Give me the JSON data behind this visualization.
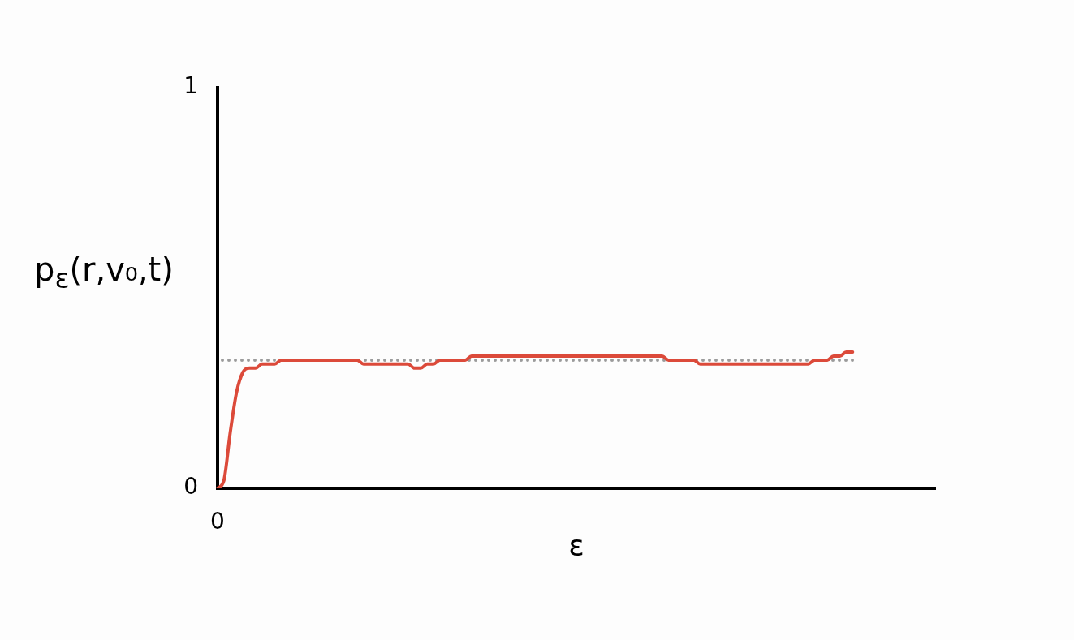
{
  "chart_data": {
    "type": "line",
    "xlabel": "ε",
    "ylabel": "p$_{ε}$(r,v₀,t)",
    "categories": [
      "0",
      null,
      null,
      null,
      null,
      null,
      null,
      null,
      null,
      null,
      null,
      null,
      null,
      null,
      null,
      null,
      null,
      null,
      null,
      null,
      null,
      null,
      null,
      null,
      null,
      null,
      null,
      null,
      null,
      null,
      null,
      null,
      null,
      null,
      null,
      null,
      null,
      null,
      null,
      null,
      null,
      null,
      null,
      null,
      null,
      null,
      null,
      null,
      null,
      null,
      null,
      null,
      null,
      null,
      null,
      null,
      null,
      null,
      null,
      null,
      null,
      null,
      null,
      null,
      null,
      null,
      null,
      null,
      null,
      null,
      null,
      null,
      null,
      null,
      null,
      null,
      null,
      null,
      null,
      null,
      null,
      null,
      null,
      null,
      null,
      null,
      null,
      null,
      null,
      null,
      null,
      null,
      null,
      null,
      null,
      null,
      null,
      null,
      null,
      null,
      null,
      null,
      null,
      null,
      null,
      null,
      null,
      null,
      null,
      null,
      null,
      null,
      null,
      null
    ],
    "series": [
      {
        "color": "#dc4a3a",
        "values": [
          0,
          0.02,
          0.14,
          0.24,
          0.29,
          0.3,
          0.3,
          0.31,
          0.31,
          0.31,
          0.32,
          0.32,
          0.32,
          0.32,
          0.32,
          0.32,
          0.32,
          0.32,
          0.32,
          0.32,
          0.32,
          0.32,
          0.32,
          0.31,
          0.31,
          0.31,
          0.31,
          0.31,
          0.31,
          0.31,
          0.31,
          0.3,
          0.3,
          0.31,
          0.31,
          0.32,
          0.32,
          0.32,
          0.32,
          0.32,
          0.33,
          0.33,
          0.33,
          0.33,
          0.33,
          0.33,
          0.33,
          0.33,
          0.33,
          0.33,
          0.33,
          0.33,
          0.33,
          0.33,
          0.33,
          0.33,
          0.33,
          0.33,
          0.33,
          0.33,
          0.33,
          0.33,
          0.33,
          0.33,
          0.33,
          0.33,
          0.33,
          0.33,
          0.33,
          0.33,
          0.33,
          0.32,
          0.32,
          0.32,
          0.32,
          0.32,
          0.31,
          0.31,
          0.31,
          0.31,
          0.31,
          0.31,
          0.31,
          0.31,
          0.31,
          0.31,
          0.31,
          0.31,
          0.31,
          0.31,
          0.31,
          0.31,
          0.31,
          0.31,
          0.32,
          0.32,
          0.32,
          0.33,
          0.33,
          0.34,
          0.34,
          null,
          null,
          null,
          null,
          null,
          null,
          null,
          null,
          null,
          null,
          null,
          null,
          null
        ]
      }
    ],
    "ylim": [
      0,
      1
    ],
    "yticks": [
      0,
      1
    ],
    "ref_lines": [
      {
        "axis": "y",
        "value": 0.32,
        "color": "#9b9b9b",
        "line_style": "dotted"
      }
    ],
    "marker": "none",
    "line_style": "solid"
  }
}
